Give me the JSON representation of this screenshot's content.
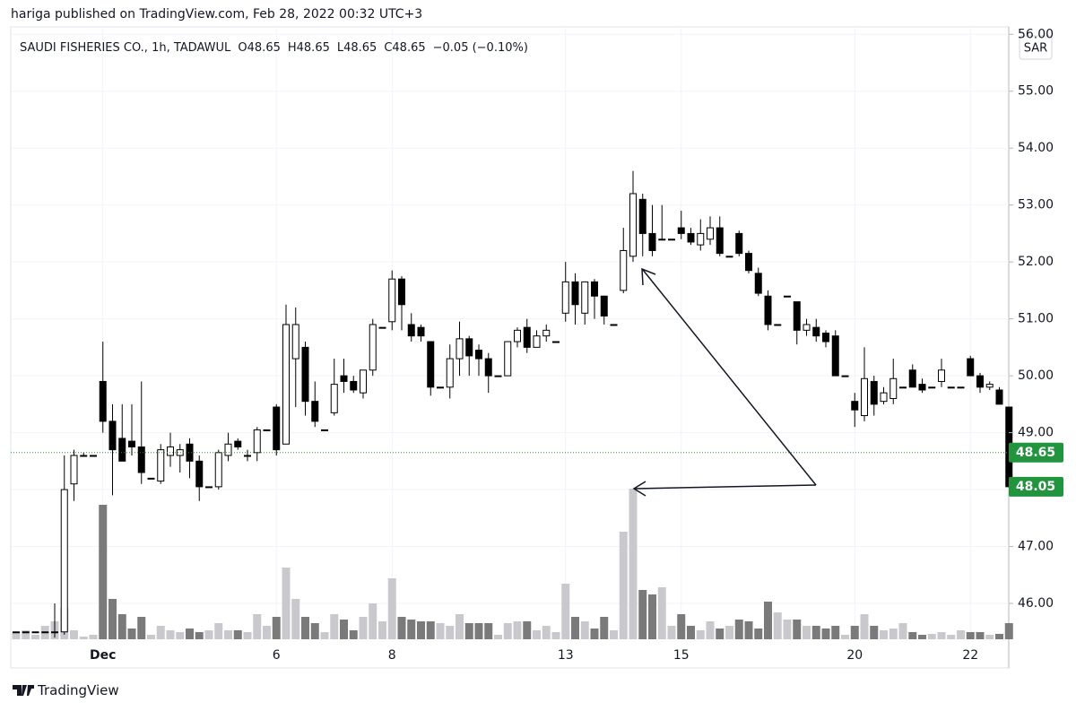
{
  "header": {
    "text": "hariga published on TradingView.com, Feb 28, 2022 00:32 UTC+3"
  },
  "chart_data": {
    "type": "candlestick",
    "legend": {
      "symbol": "SAUDI FISHERIES CO., 1h, TADAWUL",
      "ohlc": [
        {
          "label": "O",
          "value": 48.65
        },
        {
          "label": "H",
          "value": 48.65
        },
        {
          "label": "L",
          "value": 48.65
        },
        {
          "label": "C",
          "value": 48.65
        }
      ],
      "change": "−0.05 (−0.10%)"
    },
    "currency": "SAR",
    "x": [
      null,
      null,
      null,
      null,
      null,
      null,
      null,
      null,
      null,
      "Dec",
      null,
      null,
      null,
      null,
      null,
      null,
      null,
      null,
      null,
      null,
      null,
      null,
      null,
      null,
      null,
      null,
      null,
      "6",
      null,
      null,
      null,
      null,
      null,
      null,
      null,
      null,
      null,
      null,
      null,
      "8",
      null,
      null,
      null,
      null,
      null,
      null,
      null,
      null,
      null,
      null,
      null,
      null,
      null,
      null,
      null,
      null,
      null,
      "13",
      null,
      null,
      null,
      null,
      null,
      null,
      null,
      null,
      null,
      null,
      null,
      "15",
      null,
      null,
      null,
      null,
      null,
      null,
      null,
      null,
      null,
      null,
      null,
      null,
      null,
      null,
      null,
      null,
      null,
      "20",
      null,
      null,
      null,
      null,
      null,
      null,
      null,
      null,
      null,
      null,
      null,
      "22",
      null,
      null,
      null,
      null
    ],
    "open": [
      45.5,
      45.5,
      45.5,
      45.5,
      45.5,
      45.5,
      48.1,
      48.6,
      48.6,
      49.9,
      49.2,
      48.9,
      48.85,
      48.75,
      48.2,
      48.15,
      48.6,
      48.6,
      48.8,
      48.5,
      48.05,
      48.05,
      48.6,
      48.85,
      48.6,
      48.65,
      49.05,
      49.45,
      48.8,
      50.3,
      50.5,
      49.55,
      49.05,
      49.35,
      50.0,
      49.9,
      49.7,
      50.1,
      50.85,
      50.95,
      51.7,
      50.9,
      50.85,
      50.6,
      49.8,
      49.8,
      50.3,
      50.65,
      50.45,
      50.3,
      50.0,
      50.0,
      50.6,
      50.85,
      50.5,
      50.7,
      50.6,
      51.1,
      51.65,
      51.1,
      51.65,
      51.4,
      50.9,
      51.5,
      52.1,
      53.1,
      52.5,
      52.4,
      52.4,
      52.6,
      52.5,
      52.3,
      52.4,
      52.6,
      52.1,
      52.5,
      52.15,
      51.8,
      51.4,
      50.9,
      51.4,
      51.3,
      50.8,
      50.85,
      50.75,
      50.7,
      50.0,
      49.55,
      49.3,
      49.9,
      49.55,
      49.6,
      49.8,
      50.1,
      49.85,
      49.8,
      49.9,
      49.8,
      49.8,
      50.3,
      50.0,
      49.8,
      49.75,
      49.45
    ],
    "high": [
      45.5,
      45.5,
      45.5,
      45.5,
      46.0,
      48.6,
      48.7,
      48.65,
      48.6,
      50.6,
      49.5,
      49.5,
      49.5,
      49.9,
      48.2,
      48.8,
      49.0,
      48.8,
      48.9,
      48.6,
      48.05,
      48.7,
      49.0,
      48.9,
      48.7,
      49.1,
      49.05,
      49.5,
      51.25,
      51.2,
      50.6,
      49.9,
      49.05,
      50.3,
      50.3,
      50.0,
      50.1,
      51.0,
      50.85,
      51.85,
      51.75,
      51.1,
      50.9,
      50.6,
      49.8,
      50.55,
      50.95,
      50.7,
      50.55,
      50.4,
      50.0,
      50.6,
      50.85,
      51.0,
      50.8,
      50.9,
      50.6,
      52.0,
      51.8,
      51.65,
      51.7,
      51.4,
      50.9,
      52.6,
      53.6,
      53.2,
      53.0,
      53.0,
      52.4,
      52.9,
      52.6,
      52.75,
      52.8,
      52.8,
      52.1,
      52.55,
      52.2,
      51.9,
      51.5,
      50.9,
      51.4,
      51.3,
      51.0,
      51.0,
      50.8,
      50.8,
      50.0,
      49.7,
      50.5,
      50.0,
      49.8,
      50.3,
      49.8,
      50.2,
      49.95,
      49.8,
      50.3,
      49.8,
      49.8,
      50.35,
      50.05,
      49.9,
      49.8,
      49.45
    ],
    "low": [
      45.5,
      45.5,
      45.5,
      45.5,
      45.4,
      45.45,
      47.8,
      48.6,
      48.6,
      49.0,
      47.9,
      48.5,
      48.6,
      48.1,
      48.2,
      48.1,
      48.4,
      48.3,
      48.2,
      47.8,
      48.05,
      48.0,
      48.5,
      48.7,
      48.5,
      48.5,
      49.05,
      48.6,
      48.8,
      49.45,
      49.3,
      49.1,
      49.05,
      49.3,
      49.7,
      49.7,
      49.6,
      50.0,
      50.85,
      50.8,
      50.8,
      50.6,
      50.6,
      49.65,
      49.8,
      49.6,
      50.0,
      50.0,
      50.0,
      49.7,
      50.0,
      50.0,
      50.5,
      50.4,
      50.5,
      50.6,
      50.6,
      50.95,
      50.9,
      50.9,
      51.0,
      50.9,
      50.9,
      51.45,
      52.0,
      52.1,
      52.1,
      52.4,
      52.4,
      52.4,
      52.3,
      52.2,
      52.3,
      52.1,
      52.1,
      52.1,
      51.8,
      51.4,
      50.8,
      50.9,
      51.4,
      50.55,
      50.7,
      50.6,
      50.5,
      50.0,
      50.0,
      49.1,
      49.2,
      49.3,
      49.5,
      49.5,
      49.8,
      49.8,
      49.7,
      49.8,
      49.8,
      49.8,
      49.8,
      50.0,
      49.7,
      49.75,
      49.5,
      48.05
    ],
    "close": [
      45.5,
      45.5,
      45.5,
      45.5,
      45.5,
      48.0,
      48.6,
      48.6,
      48.6,
      49.2,
      48.7,
      48.5,
      48.75,
      48.3,
      48.2,
      48.7,
      48.75,
      48.7,
      48.5,
      48.05,
      48.05,
      48.65,
      48.8,
      48.75,
      48.6,
      49.05,
      49.05,
      48.7,
      50.9,
      50.9,
      49.55,
      49.2,
      49.05,
      49.85,
      49.9,
      49.75,
      50.1,
      50.9,
      50.85,
      51.7,
      51.25,
      50.7,
      50.7,
      49.8,
      49.8,
      50.3,
      50.65,
      50.35,
      50.3,
      50.0,
      50.0,
      50.6,
      50.8,
      50.5,
      50.7,
      50.8,
      50.6,
      51.65,
      51.25,
      51.65,
      51.4,
      51.05,
      50.9,
      52.2,
      53.2,
      52.5,
      52.2,
      52.4,
      52.4,
      52.5,
      52.35,
      52.5,
      52.6,
      52.15,
      52.1,
      52.15,
      51.85,
      51.45,
      50.9,
      50.9,
      51.4,
      50.8,
      50.9,
      50.7,
      50.6,
      50.0,
      50.0,
      49.4,
      49.95,
      49.5,
      49.7,
      49.95,
      49.8,
      49.8,
      49.75,
      49.8,
      50.1,
      49.8,
      49.8,
      50.0,
      49.8,
      49.85,
      49.5,
      48.05
    ],
    "volume": [
      8,
      10,
      5,
      15,
      20,
      35,
      10,
      3,
      5,
      150,
      45,
      28,
      12,
      25,
      5,
      15,
      10,
      8,
      12,
      8,
      10,
      18,
      10,
      10,
      8,
      28,
      15,
      25,
      80,
      45,
      25,
      18,
      8,
      28,
      22,
      10,
      25,
      40,
      20,
      68,
      25,
      22,
      20,
      20,
      18,
      15,
      28,
      18,
      18,
      18,
      5,
      18,
      20,
      20,
      10,
      15,
      8,
      62,
      25,
      20,
      12,
      25,
      10,
      120,
      168,
      55,
      50,
      58,
      15,
      28,
      15,
      10,
      20,
      12,
      15,
      22,
      20,
      12,
      42,
      30,
      22,
      22,
      15,
      15,
      12,
      15,
      5,
      15,
      28,
      15,
      10,
      12,
      18,
      8,
      5,
      6,
      8,
      5,
      10,
      8,
      8,
      5,
      6,
      18
    ],
    "ylim": [
      45.37,
      56.13
    ],
    "yticks": [
      {
        "value": 46,
        "label": "46.00"
      },
      {
        "value": 47,
        "label": "47.00"
      },
      {
        "value": 48,
        "label": "48.00"
      },
      {
        "value": 49,
        "label": "49.00"
      },
      {
        "value": 50,
        "label": "50.00"
      },
      {
        "value": 51,
        "label": "51.00"
      },
      {
        "value": 52,
        "label": "52.00"
      },
      {
        "value": 53,
        "label": "53.00"
      },
      {
        "value": 54,
        "label": "54.00"
      },
      {
        "value": 55,
        "label": "55.00"
      },
      {
        "value": 56,
        "label": "56.00"
      }
    ],
    "price_markers": [
      48.65,
      48.05
    ],
    "grid": true,
    "up_color": "#ffffff",
    "down_color": "#000000",
    "up_volume_color": "#c9c9cd",
    "down_volume_color": "#7a7a7a",
    "marker_color": "#22943e"
  },
  "footer": {
    "brand": "TradingView"
  }
}
